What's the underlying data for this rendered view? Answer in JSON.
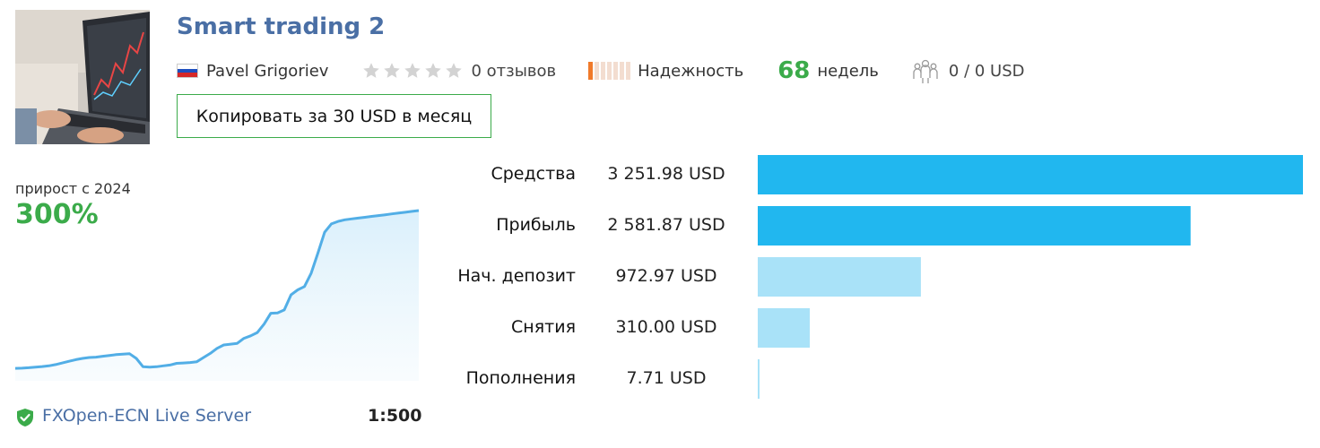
{
  "header": {
    "title": "Smart trading 2",
    "author": "Pavel Grigoriev",
    "flag_colors": [
      "#ffffff",
      "#1f4fbf",
      "#d62828"
    ],
    "rating_stars": 0,
    "reviews": "0 отзывов",
    "reliability_label": "Надежность",
    "reliability_level": 1,
    "reliability_segments": 7,
    "weeks_value": "68",
    "weeks_label": "недель",
    "subscribers": "0 / 0 USD",
    "copy_button": "Копировать за 30 USD в месяц"
  },
  "growth": {
    "label": "прирост с 2024",
    "value": "300%"
  },
  "server": {
    "name": "FXOpen-ECN Live Server",
    "leverage": "1:500"
  },
  "stats": [
    {
      "label": "Средства",
      "value": "3 251.98 USD",
      "amount": 3251.98,
      "color": "#21b7ef"
    },
    {
      "label": "Прибыль",
      "value": "2 581.87 USD",
      "amount": 2581.87,
      "color": "#21b7ef"
    },
    {
      "label": "Нач. депозит",
      "value": "972.97 USD",
      "amount": 972.97,
      "color": "#a9e2f8"
    },
    {
      "label": "Снятия",
      "value": "310.00 USD",
      "amount": 310.0,
      "color": "#a9e2f8"
    },
    {
      "label": "Пополнения",
      "value": "7.71 USD",
      "amount": 7.71,
      "color": "#a9e2f8"
    }
  ],
  "chart_data": {
    "type": "area",
    "x": [
      0,
      1,
      2,
      3,
      4,
      5,
      6,
      7,
      8,
      9,
      10,
      11,
      12,
      13,
      14,
      15,
      16,
      17,
      18,
      19,
      20,
      21,
      22,
      23,
      24,
      25,
      26,
      27,
      28,
      29,
      30,
      31,
      32,
      33,
      34,
      35,
      36,
      37,
      38,
      39,
      40,
      41,
      42,
      43,
      44,
      45,
      46,
      47,
      48,
      49,
      50,
      51,
      52,
      53,
      54,
      55,
      56,
      57,
      58,
      59,
      60
    ],
    "values": [
      2,
      2.3,
      2.8,
      3.5,
      4.2,
      5,
      6.5,
      8.5,
      10.5,
      12.5,
      14,
      15,
      15.5,
      16.5,
      17.5,
      18.5,
      19,
      19.5,
      14,
      4,
      3.5,
      4,
      5,
      6,
      8,
      8.5,
      9,
      10,
      15,
      20,
      26,
      30,
      31,
      32,
      38,
      41,
      45,
      55,
      68,
      68.5,
      72,
      90,
      96,
      100,
      116,
      140,
      165,
      175,
      178,
      180,
      181,
      182,
      183,
      184,
      185,
      186,
      187,
      188,
      189,
      190,
      191
    ],
    "accent_color": "#52aee6"
  },
  "colors": {
    "link": "#4a6fa5",
    "accent_green": "#3bab4a",
    "reliability": "#f07a2a"
  }
}
